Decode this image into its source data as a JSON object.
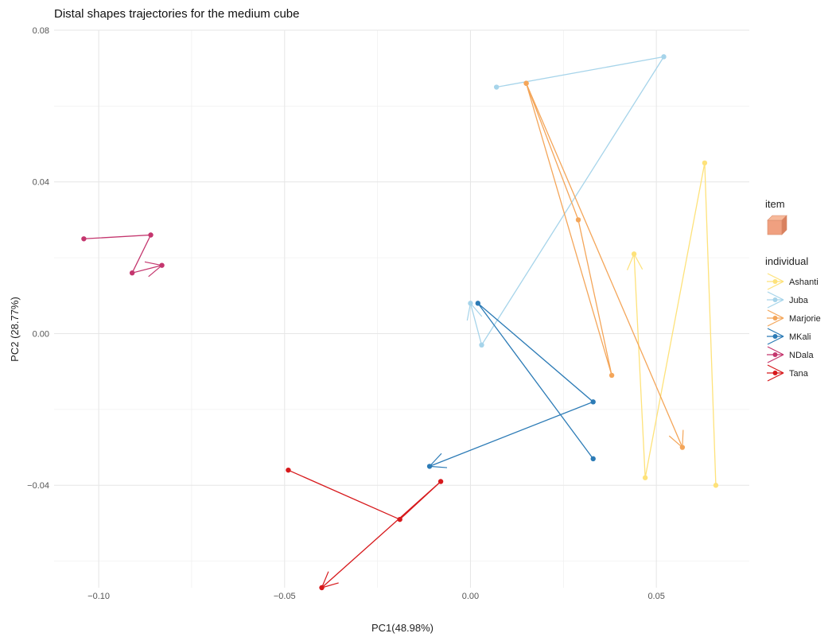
{
  "chart_data": {
    "type": "line",
    "title": "Distal shapes trajectories for the medium cube",
    "xlabel": "PC1(48.98%)",
    "ylabel": "PC2 (28.77%)",
    "xlim": [
      -0.112,
      0.075
    ],
    "ylim": [
      -0.067,
      0.08
    ],
    "x_ticks": [
      -0.1,
      -0.05,
      0.0,
      0.05
    ],
    "x_tick_labels": [
      "−0.10",
      "−0.05",
      "0.00",
      "0.05"
    ],
    "y_ticks": [
      -0.04,
      0.0,
      0.04,
      0.08
    ],
    "y_tick_labels": [
      "−0.04",
      "0.00",
      "0.04",
      "0.08"
    ],
    "grid": true,
    "legend_position": "right",
    "legend": {
      "item_title": "item",
      "item_icon": "cube-icon",
      "item_color": "#f0a080",
      "individual_title": "individual"
    },
    "series": [
      {
        "name": "Ashanti",
        "color": "#fee27a",
        "points": [
          [
            0.066,
            -0.04
          ],
          [
            0.063,
            0.045
          ],
          [
            0.047,
            -0.038
          ],
          [
            0.044,
            0.021
          ]
        ]
      },
      {
        "name": "Juba",
        "color": "#a6d4ea",
        "points": [
          [
            0.007,
            0.065
          ],
          [
            0.052,
            0.073
          ],
          [
            0.003,
            -0.003
          ],
          [
            0.0,
            0.008
          ]
        ]
      },
      {
        "name": "Marjorie",
        "color": "#f4a65a",
        "points": [
          [
            0.015,
            0.066
          ],
          [
            0.029,
            0.03
          ],
          [
            0.038,
            -0.011
          ],
          [
            0.015,
            0.066
          ],
          [
            0.057,
            -0.03
          ]
        ]
      },
      {
        "name": "MKali",
        "color": "#2c7bb6",
        "points": [
          [
            0.033,
            -0.033
          ],
          [
            0.002,
            0.008
          ],
          [
            0.033,
            -0.018
          ],
          [
            -0.011,
            -0.035
          ]
        ]
      },
      {
        "name": "NDala",
        "color": "#c4366e",
        "points": [
          [
            -0.104,
            0.025
          ],
          [
            -0.086,
            0.026
          ],
          [
            -0.091,
            0.016
          ],
          [
            -0.083,
            0.018
          ]
        ]
      },
      {
        "name": "Tana",
        "color": "#d7191c",
        "points": [
          [
            -0.049,
            -0.036
          ],
          [
            -0.019,
            -0.049
          ],
          [
            -0.008,
            -0.039
          ],
          [
            -0.04,
            -0.067
          ]
        ]
      }
    ]
  }
}
